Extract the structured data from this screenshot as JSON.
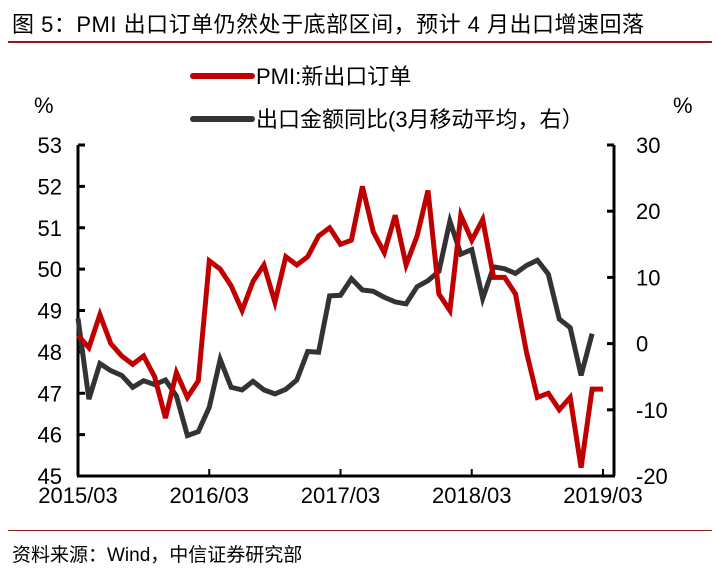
{
  "header": {
    "title": "图 5：PMI 出口订单仍然处于底部区间，预计 4 月出口增速回落"
  },
  "footer": {
    "source": "资料来源：Wind，中信证券研究部"
  },
  "colors": {
    "pmi_series": "#c00000",
    "export_series": "#333333",
    "rule": "#8b1a1a",
    "axis": "#000000"
  },
  "chart_data": {
    "type": "line",
    "title": "图 5：PMI 出口订单仍然处于底部区间，预计 4 月出口增速回落",
    "xlabel": "",
    "ylabel_left": "%",
    "ylabel_right": "%",
    "ylim_left": [
      45,
      53
    ],
    "ylim_right": [
      -20,
      30
    ],
    "yticks_left": [
      45,
      46,
      47,
      48,
      49,
      50,
      51,
      52,
      53
    ],
    "yticks_right": [
      -20,
      -10,
      0,
      10,
      20,
      30
    ],
    "xtick_labels": [
      "2015/03",
      "2016/03",
      "2017/03",
      "2018/03",
      "2019/03"
    ],
    "grid": false,
    "legend_position": "top",
    "x": [
      "2015/03",
      "2015/04",
      "2015/05",
      "2015/06",
      "2015/07",
      "2015/08",
      "2015/09",
      "2015/10",
      "2015/11",
      "2015/12",
      "2016/01",
      "2016/02",
      "2016/03",
      "2016/04",
      "2016/05",
      "2016/06",
      "2016/07",
      "2016/08",
      "2016/09",
      "2016/10",
      "2016/11",
      "2016/12",
      "2017/01",
      "2017/02",
      "2017/03",
      "2017/04",
      "2017/05",
      "2017/06",
      "2017/07",
      "2017/08",
      "2017/09",
      "2017/10",
      "2017/11",
      "2017/12",
      "2018/01",
      "2018/02",
      "2018/03",
      "2018/04",
      "2018/05",
      "2018/06",
      "2018/07",
      "2018/08",
      "2018/09",
      "2018/10",
      "2018/11",
      "2018/12",
      "2019/01",
      "2019/02",
      "2019/03"
    ],
    "series": [
      {
        "name": "PMI:新出口订单",
        "axis": "left",
        "color": "#c00000",
        "values": [
          48.4,
          48.1,
          48.9,
          48.2,
          47.9,
          47.7,
          47.9,
          47.4,
          46.4,
          47.5,
          46.9,
          47.3,
          50.2,
          50.0,
          49.6,
          49.0,
          49.7,
          50.1,
          49.2,
          50.3,
          50.1,
          50.3,
          50.8,
          51.0,
          50.6,
          50.7,
          52.0,
          50.9,
          50.4,
          51.3,
          50.1,
          50.8,
          51.9,
          49.4,
          49.0,
          51.3,
          50.7,
          51.2,
          49.8,
          49.8,
          49.4,
          48.0,
          46.9,
          47.0,
          46.6,
          46.9,
          45.2,
          47.1,
          47.1
        ]
      },
      {
        "name": "出口金额同比(3月移动平均，右）",
        "axis": "right",
        "color": "#333333",
        "values": [
          3.8,
          -8.4,
          -3.0,
          -4.1,
          -4.8,
          -6.6,
          -5.6,
          -6.2,
          -5.5,
          -7.9,
          -13.9,
          -13.3,
          -9.6,
          -2.4,
          -6.6,
          -7.0,
          -5.7,
          -7.0,
          -7.6,
          -6.9,
          -5.5,
          -1.2,
          -1.3,
          7.2,
          7.3,
          9.8,
          8.1,
          7.9,
          7.0,
          6.3,
          6.0,
          8.6,
          9.5,
          10.9,
          18.5,
          13.5,
          14.2,
          6.8,
          11.6,
          11.3,
          10.6,
          11.8,
          12.6,
          10.5,
          3.7,
          2.4,
          -4.8,
          1.5,
          null
        ]
      }
    ]
  },
  "legend": [
    {
      "label": "PMI:新出口订单",
      "color": "#c00000"
    },
    {
      "label": "出口金额同比(3月移动平均，右）",
      "color": "#333333"
    }
  ],
  "axes": {
    "left_unit": "%",
    "right_unit": "%",
    "left_ticks": [
      "53",
      "52",
      "51",
      "50",
      "49",
      "48",
      "47",
      "46",
      "45"
    ],
    "right_ticks": [
      "30",
      "20",
      "10",
      "0",
      "-10",
      "-20"
    ],
    "x_ticks": [
      "2015/03",
      "2016/03",
      "2017/03",
      "2018/03",
      "2019/03"
    ]
  }
}
